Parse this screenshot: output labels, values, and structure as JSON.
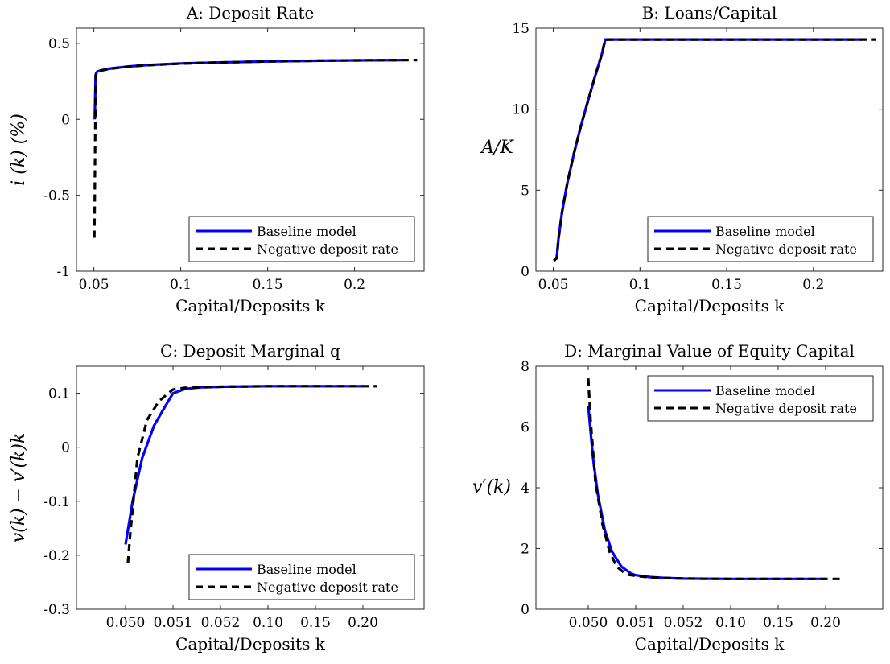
{
  "colors": {
    "baseline": "#0000ff",
    "negative": "#000000",
    "axis": "#262626"
  },
  "chart_data": [
    {
      "id": "A",
      "type": "line",
      "title": "A: Deposit Rate",
      "xlabel": "Capital/Deposits k",
      "ylabel": "i (k) (%)",
      "xlim": [
        0.04,
        0.24
      ],
      "ylim": [
        -1,
        0.6
      ],
      "xticks": [
        0.05,
        0.1,
        0.15,
        0.2
      ],
      "xtick_labels": [
        "0.05",
        "0.1",
        "0.15",
        "0.2"
      ],
      "yticks": [
        -1,
        -0.5,
        0,
        0.5
      ],
      "ytick_labels": [
        "-1",
        "-0.5",
        "0",
        "0.5"
      ],
      "legend": {
        "location": "bottom-right",
        "entries": [
          "Baseline model",
          "Negative deposit rate"
        ]
      },
      "series": [
        {
          "name": "Baseline model",
          "style": "solid",
          "x": [
            0.0505,
            0.051,
            0.0512,
            0.052,
            0.055,
            0.06,
            0.07,
            0.08,
            0.1,
            0.12,
            0.15,
            0.18,
            0.2,
            0.228
          ],
          "y": [
            0.0,
            0.29,
            0.3,
            0.315,
            0.325,
            0.335,
            0.348,
            0.357,
            0.368,
            0.374,
            0.381,
            0.386,
            0.388,
            0.39
          ]
        },
        {
          "name": "Negative deposit rate",
          "style": "dashed",
          "x": [
            0.0503,
            0.0505,
            0.0508,
            0.051,
            0.0512,
            0.052,
            0.055,
            0.06,
            0.07,
            0.08,
            0.1,
            0.12,
            0.15,
            0.18,
            0.2,
            0.236
          ],
          "y": [
            -0.78,
            -0.55,
            -0.1,
            0.2,
            0.29,
            0.31,
            0.323,
            0.334,
            0.347,
            0.356,
            0.367,
            0.374,
            0.381,
            0.386,
            0.388,
            0.39
          ]
        }
      ]
    },
    {
      "id": "B",
      "type": "line",
      "title": "B: Loans/Capital",
      "xlabel": "Capital/Deposits k",
      "ylabel": "A/K",
      "xlim": [
        0.04,
        0.24
      ],
      "ylim": [
        0,
        15
      ],
      "xticks": [
        0.05,
        0.1,
        0.15,
        0.2
      ],
      "xtick_labels": [
        "0.05",
        "0.1",
        "0.15",
        "0.2"
      ],
      "yticks": [
        0,
        5,
        10,
        15
      ],
      "ytick_labels": [
        "0",
        "5",
        "10",
        "15"
      ],
      "legend": {
        "location": "bottom-right",
        "entries": [
          "Baseline model",
          "Negative deposit rate"
        ]
      },
      "series": [
        {
          "name": "Baseline model",
          "style": "solid",
          "x": [
            0.0505,
            0.052,
            0.053,
            0.055,
            0.058,
            0.062,
            0.066,
            0.07,
            0.074,
            0.078,
            0.08,
            0.1,
            0.15,
            0.2,
            0.228
          ],
          "y": [
            0.65,
            0.85,
            2.0,
            3.6,
            5.4,
            7.3,
            9.0,
            10.5,
            12.0,
            13.4,
            14.3,
            14.3,
            14.3,
            14.3,
            14.3
          ]
        },
        {
          "name": "Negative deposit rate",
          "style": "dashed",
          "x": [
            0.0502,
            0.052,
            0.053,
            0.055,
            0.058,
            0.062,
            0.066,
            0.07,
            0.074,
            0.078,
            0.08,
            0.1,
            0.15,
            0.2,
            0.236
          ],
          "y": [
            0.65,
            0.8,
            2.0,
            3.6,
            5.4,
            7.3,
            9.0,
            10.5,
            12.0,
            13.4,
            14.3,
            14.3,
            14.3,
            14.3,
            14.3
          ]
        }
      ]
    },
    {
      "id": "C",
      "type": "line",
      "title": "C: Deposit Marginal q",
      "xlabel": "Capital/Deposits k",
      "ylabel": "v(k) − v′(k)k",
      "x_axis_note": "x axis is not linear; points are placed by tick label, value given as its tick value",
      "xticks": [
        "0.050",
        "0.051",
        "0.052",
        "0.10",
        "0.15",
        "0.20"
      ],
      "yticks": [
        -0.3,
        -0.2,
        -0.1,
        0,
        0.1
      ],
      "ytick_labels": [
        "-0.3",
        "-0.2",
        "-0.1",
        "0",
        "0.1"
      ],
      "ylim": [
        -0.3,
        0.15
      ],
      "legend": {
        "location": "bottom-right",
        "entries": [
          "Baseline model",
          "Negative deposit rate"
        ]
      },
      "series": [
        {
          "name": "Baseline model",
          "style": "solid",
          "x_tick_position": [
            0,
            0.15,
            0.35,
            0.6,
            0.85,
            1.0,
            1.25,
            1.6,
            2.0,
            3.0,
            4.0,
            5.0
          ],
          "y": [
            -0.18,
            -0.1,
            -0.02,
            0.04,
            0.078,
            0.1,
            0.108,
            0.111,
            0.112,
            0.113,
            0.113,
            0.113
          ]
        },
        {
          "name": "Negative deposit rate",
          "style": "dashed",
          "x_tick_position": [
            0.05,
            0.1,
            0.25,
            0.45,
            0.7,
            0.9,
            1.0,
            1.25,
            1.6,
            2.0,
            3.0,
            4.0,
            5.0,
            5.3
          ],
          "y": [
            -0.215,
            -0.16,
            -0.02,
            0.05,
            0.085,
            0.1,
            0.107,
            0.11,
            0.111,
            0.112,
            0.113,
            0.113,
            0.113,
            0.113
          ]
        }
      ]
    },
    {
      "id": "D",
      "type": "line",
      "title": "D: Marginal Value of Equity Capital",
      "xlabel": "Capital/Deposits k",
      "ylabel": "v′(k)",
      "x_axis_note": "x axis is not linear; points are placed by tick label, value given as its tick value",
      "xticks": [
        "0.050",
        "0.051",
        "0.052",
        "0.10",
        "0.15",
        "0.20"
      ],
      "yticks": [
        0,
        2,
        4,
        6,
        8
      ],
      "ytick_labels": [
        "0",
        "2",
        "4",
        "6",
        "8"
      ],
      "ylim": [
        0,
        8
      ],
      "legend": {
        "location": "top-right",
        "entries": [
          "Baseline model",
          "Negative deposit rate"
        ]
      },
      "series": [
        {
          "name": "Baseline model",
          "style": "solid",
          "x_tick_position": [
            0,
            0.1,
            0.2,
            0.35,
            0.5,
            0.7,
            0.9,
            1.0,
            1.3,
            1.6,
            2.0,
            3.0,
            4.0,
            5.0
          ],
          "y": [
            6.7,
            5.0,
            3.8,
            2.6,
            1.9,
            1.4,
            1.18,
            1.12,
            1.06,
            1.03,
            1.01,
            1.0,
            1.0,
            1.0
          ]
        },
        {
          "name": "Negative deposit rate",
          "style": "dashed",
          "x_tick_position": [
            0.0,
            0.05,
            0.15,
            0.3,
            0.45,
            0.6,
            0.8,
            1.0,
            1.3,
            1.6,
            2.0,
            3.0,
            4.0,
            5.0,
            5.3
          ],
          "y": [
            7.6,
            6.2,
            4.2,
            2.8,
            1.9,
            1.4,
            1.15,
            1.1,
            1.05,
            1.03,
            1.01,
            1.0,
            1.0,
            1.0,
            1.0
          ]
        }
      ]
    }
  ]
}
